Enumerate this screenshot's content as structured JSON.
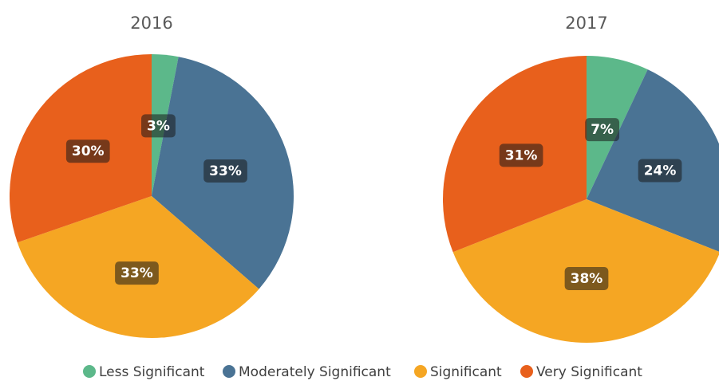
{
  "chart_data": [
    {
      "type": "pie",
      "title": "2016",
      "categories": [
        "Less Significant",
        "Moderately Significant",
        "Significant",
        "Very Significant"
      ],
      "values": [
        3,
        33,
        33,
        30
      ],
      "value_labels": [
        "3%",
        "33%",
        "33%",
        "30%"
      ],
      "colors": [
        "#5cb88a",
        "#4a7394",
        "#f5a623",
        "#e8601c"
      ]
    },
    {
      "type": "pie",
      "title": "2017",
      "categories": [
        "Less Significant",
        "Moderately Significant",
        "Significant",
        "Very Significant"
      ],
      "values": [
        7,
        24,
        38,
        31
      ],
      "value_labels": [
        "7%",
        "24%",
        "38%",
        "31%"
      ],
      "colors": [
        "#5cb88a",
        "#4a7394",
        "#f5a623",
        "#e8601c"
      ]
    }
  ]
}
